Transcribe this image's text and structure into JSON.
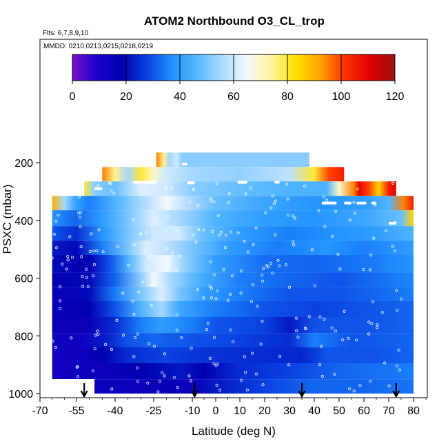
{
  "chart_data": {
    "type": "heatmap",
    "title": "ATOM2 Northbound O3_CL_trop",
    "flights_note": "Flts: 6,7,8,9,10",
    "dates_note": "MMDD: 0210,0213,0215,0218,0219",
    "xlabel": "Latitude (deg N)",
    "ylabel": "PSXC (mbar)",
    "xlim": [
      -70,
      90
    ],
    "ylim": [
      1000,
      0
    ],
    "x_ticks": [
      "-70",
      "-55",
      "-40",
      "-25",
      "-10",
      "0",
      "10",
      "20",
      "30",
      "40",
      "50",
      "60",
      "70",
      "80"
    ],
    "y_ticks": [
      "200",
      "400",
      "600",
      "800",
      "1000"
    ],
    "colorbar": {
      "range": [
        0,
        120
      ],
      "ticks": [
        "0",
        "20",
        "40",
        "60",
        "80",
        "100",
        "120"
      ],
      "colors": [
        "#7a10d0",
        "#1a00c8",
        "#0000b0",
        "#0a3fe0",
        "#1e90ff",
        "#55b8ff",
        "#a8d8ff",
        "#f4f8ff",
        "#fff4a0",
        "#ffe000",
        "#ffa000",
        "#ff3000",
        "#e00000",
        "#9a1010"
      ]
    },
    "bands": [
      {
        "p": [
          165,
          215
        ],
        "x0": -24,
        "x1": 38,
        "v": [
          [
            -24,
            95
          ],
          [
            -21,
            75
          ],
          [
            -19,
            55
          ],
          [
            -16,
            60
          ],
          [
            -14,
            52
          ],
          [
            38,
            52
          ]
        ]
      },
      {
        "p": [
          215,
          265
        ],
        "x0": -45,
        "x1": 52,
        "v": [
          [
            -45,
            95
          ],
          [
            -40,
            75
          ],
          [
            -35,
            55
          ],
          [
            -30,
            80
          ],
          [
            -25,
            70
          ],
          [
            -20,
            60
          ],
          [
            -10,
            55
          ],
          [
            10,
            53
          ],
          [
            30,
            58
          ],
          [
            40,
            80
          ],
          [
            46,
            100
          ],
          [
            52,
            105
          ]
        ]
      },
      {
        "p": [
          265,
          315
        ],
        "x0": -52,
        "x1": 73,
        "v": [
          [
            -52,
            80
          ],
          [
            -48,
            52
          ],
          [
            -40,
            48
          ],
          [
            -30,
            62
          ],
          [
            -20,
            60
          ],
          [
            -10,
            52
          ],
          [
            10,
            48
          ],
          [
            30,
            45
          ],
          [
            45,
            45
          ],
          [
            50,
            70
          ],
          [
            56,
            95
          ],
          [
            58,
            110
          ],
          [
            62,
            100
          ],
          [
            66,
            85
          ],
          [
            70,
            105
          ],
          [
            73,
            110
          ]
        ]
      },
      {
        "p": [
          315,
          365
        ],
        "x0": -65,
        "x1": 80,
        "v": [
          [
            -65,
            90
          ],
          [
            -60,
            55
          ],
          [
            -55,
            40
          ],
          [
            -50,
            35
          ],
          [
            -40,
            45
          ],
          [
            -30,
            55
          ],
          [
            -20,
            65
          ],
          [
            -10,
            55
          ],
          [
            0,
            48
          ],
          [
            20,
            42
          ],
          [
            40,
            38
          ],
          [
            60,
            40
          ],
          [
            70,
            45
          ],
          [
            76,
            95
          ],
          [
            80,
            105
          ]
        ]
      },
      {
        "p": [
          365,
          420
        ],
        "x0": -65,
        "x1": 80,
        "v": [
          [
            -65,
            38
          ],
          [
            -55,
            32
          ],
          [
            -45,
            40
          ],
          [
            -35,
            50
          ],
          [
            -25,
            62
          ],
          [
            -15,
            55
          ],
          [
            0,
            45
          ],
          [
            20,
            40
          ],
          [
            40,
            38
          ],
          [
            60,
            42
          ],
          [
            75,
            48
          ],
          [
            80,
            85
          ]
        ]
      },
      {
        "p": [
          420,
          470
        ],
        "x0": -65,
        "x1": 80,
        "v": [
          [
            -65,
            30
          ],
          [
            -55,
            25
          ],
          [
            -45,
            38
          ],
          [
            -35,
            50
          ],
          [
            -25,
            60
          ],
          [
            -15,
            60
          ],
          [
            -5,
            48
          ],
          [
            10,
            40
          ],
          [
            30,
            35
          ],
          [
            50,
            38
          ],
          [
            65,
            40
          ],
          [
            80,
            45
          ]
        ]
      },
      {
        "p": [
          470,
          520
        ],
        "x0": -65,
        "x1": 80,
        "v": [
          [
            -65,
            22
          ],
          [
            -55,
            20
          ],
          [
            -45,
            35
          ],
          [
            -35,
            50
          ],
          [
            -28,
            62
          ],
          [
            -20,
            58
          ],
          [
            -10,
            50
          ],
          [
            5,
            40
          ],
          [
            25,
            35
          ],
          [
            45,
            38
          ],
          [
            60,
            35
          ],
          [
            80,
            40
          ]
        ]
      },
      {
        "p": [
          520,
          580
        ],
        "x0": -65,
        "x1": 80,
        "v": [
          [
            -65,
            20
          ],
          [
            -50,
            18
          ],
          [
            -42,
            30
          ],
          [
            -35,
            45
          ],
          [
            -28,
            60
          ],
          [
            -20,
            65
          ],
          [
            -12,
            52
          ],
          [
            0,
            40
          ],
          [
            20,
            33
          ],
          [
            40,
            32
          ],
          [
            60,
            34
          ],
          [
            80,
            38
          ]
        ]
      },
      {
        "p": [
          580,
          630
        ],
        "x0": -65,
        "x1": 80,
        "v": [
          [
            -65,
            18
          ],
          [
            -50,
            20
          ],
          [
            -40,
            32
          ],
          [
            -30,
            52
          ],
          [
            -25,
            65
          ],
          [
            -18,
            55
          ],
          [
            -8,
            45
          ],
          [
            10,
            35
          ],
          [
            30,
            32
          ],
          [
            50,
            30
          ],
          [
            70,
            34
          ],
          [
            80,
            36
          ]
        ]
      },
      {
        "p": [
          630,
          680
        ],
        "x0": -65,
        "x1": 80,
        "v": [
          [
            -65,
            15
          ],
          [
            -50,
            20
          ],
          [
            -40,
            35
          ],
          [
            -30,
            50
          ],
          [
            -22,
            62
          ],
          [
            -15,
            50
          ],
          [
            -5,
            40
          ],
          [
            10,
            35
          ],
          [
            30,
            30
          ],
          [
            50,
            30
          ],
          [
            70,
            33
          ],
          [
            80,
            35
          ]
        ]
      },
      {
        "p": [
          680,
          735
        ],
        "x0": -65,
        "x1": 80,
        "v": [
          [
            -65,
            15
          ],
          [
            -50,
            18
          ],
          [
            -40,
            30
          ],
          [
            -30,
            45
          ],
          [
            -22,
            55
          ],
          [
            -15,
            42
          ],
          [
            0,
            35
          ],
          [
            20,
            30
          ],
          [
            40,
            28
          ],
          [
            60,
            30
          ],
          [
            80,
            32
          ]
        ]
      },
      {
        "p": [
          735,
          790
        ],
        "x0": -65,
        "x1": 80,
        "v": [
          [
            -65,
            15
          ],
          [
            -50,
            15
          ],
          [
            -40,
            25
          ],
          [
            -30,
            35
          ],
          [
            -22,
            40
          ],
          [
            -10,
            35
          ],
          [
            0,
            30
          ],
          [
            20,
            28
          ],
          [
            30,
            22
          ],
          [
            40,
            30
          ],
          [
            60,
            30
          ],
          [
            80,
            32
          ]
        ]
      },
      {
        "p": [
          790,
          840
        ],
        "x0": -65,
        "x1": 80,
        "v": [
          [
            -65,
            14
          ],
          [
            -55,
            12
          ],
          [
            -45,
            22
          ],
          [
            -35,
            30
          ],
          [
            -25,
            32
          ],
          [
            -10,
            30
          ],
          [
            10,
            28
          ],
          [
            30,
            25
          ],
          [
            40,
            35
          ],
          [
            55,
            30
          ],
          [
            80,
            32
          ]
        ]
      },
      {
        "p": [
          840,
          895
        ],
        "x0": -65,
        "x1": 80,
        "v": [
          [
            -65,
            12
          ],
          [
            -55,
            12
          ],
          [
            -45,
            18
          ],
          [
            -35,
            25
          ],
          [
            -20,
            28
          ],
          [
            -5,
            26
          ],
          [
            15,
            25
          ],
          [
            35,
            24
          ],
          [
            45,
            30
          ],
          [
            65,
            30
          ],
          [
            80,
            32
          ]
        ]
      },
      {
        "p": [
          895,
          950
        ],
        "x0": -65,
        "x1": 80,
        "v": [
          [
            -65,
            12
          ],
          [
            -55,
            14
          ],
          [
            -45,
            14
          ],
          [
            -30,
            18
          ],
          [
            -15,
            22
          ],
          [
            -5,
            18
          ],
          [
            10,
            25
          ],
          [
            30,
            28
          ],
          [
            50,
            32
          ],
          [
            70,
            34
          ],
          [
            80,
            35
          ]
        ]
      },
      {
        "p": [
          950,
          1000
        ],
        "x0": -48,
        "x1": 80,
        "v": [
          [
            -48,
            14
          ],
          [
            -35,
            14
          ],
          [
            -20,
            16
          ],
          [
            -10,
            14
          ],
          [
            0,
            22
          ],
          [
            20,
            28
          ],
          [
            40,
            32
          ],
          [
            60,
            32
          ],
          [
            80,
            34
          ]
        ]
      }
    ],
    "white_segments": [
      {
        "p": 205,
        "x0": -14,
        "x1": -12
      },
      {
        "p": 290,
        "x0": -48,
        "x1": -45
      },
      {
        "p": 268,
        "x0": -33,
        "x1": -24
      },
      {
        "p": 270,
        "x0": -12,
        "x1": -9
      },
      {
        "p": 268,
        "x0": 9,
        "x1": 13
      },
      {
        "p": 268,
        "x0": 24,
        "x1": 26
      },
      {
        "p": 340,
        "x0": 43,
        "x1": 49
      },
      {
        "p": 340,
        "x0": 52,
        "x1": 55
      },
      {
        "p": 340,
        "x0": 57,
        "x1": 61
      },
      {
        "p": 340,
        "x0": 63,
        "x1": 65
      },
      {
        "p": 410,
        "x0": 70,
        "x1": 73
      }
    ],
    "arrows_lat": [
      -52,
      -9,
      35,
      73
    ]
  }
}
